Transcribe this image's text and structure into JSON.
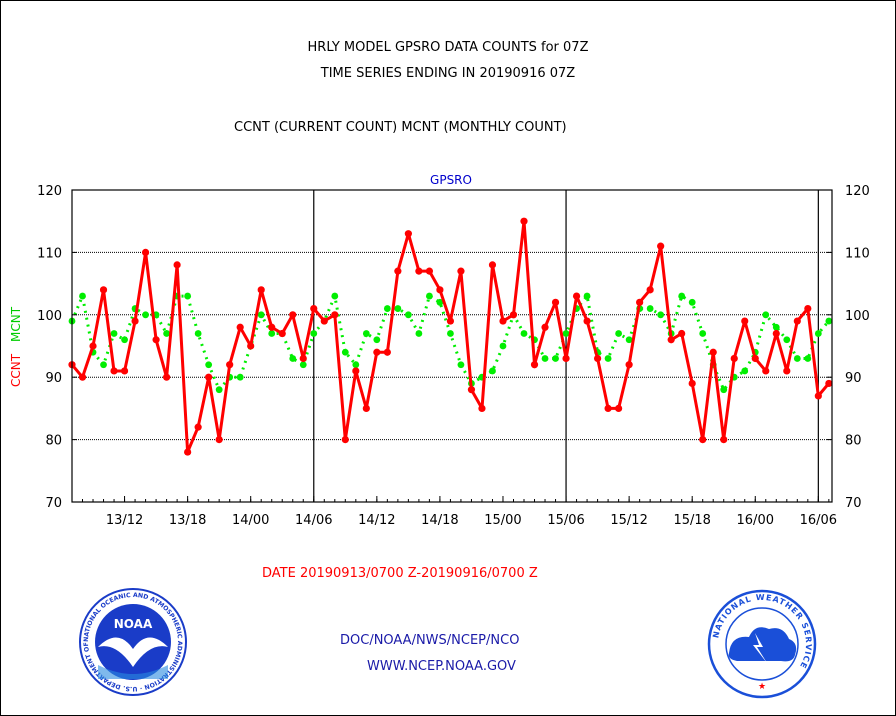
{
  "header": {
    "title_line1": "HRLY MODEL GPSRO DATA COUNTS for 07Z",
    "title_line2": "TIME SERIES ENDING IN 20190916 07Z",
    "subtitle": "CCNT (CURRENT COUNT) MCNT (MONTHLY COUNT)"
  },
  "footer": {
    "date_range": "DATE 20190913/0700 Z-20190916/0700 Z",
    "org_path": "DOC/NOAA/NWS/NCEP/NCO",
    "website": "WWW.NCEP.NOAA.GOV",
    "noaa_logo_text": "NOAA",
    "noaa_ring_text": "NATIONAL OCEANIC AND ATMOSPHERIC ADMINISTRATION · U.S. DEPARTMENT OF COMMERCE",
    "nws_ring_text": "NATIONAL WEATHER SERVICE"
  },
  "colors": {
    "ccnt": "#ff0000",
    "mcnt": "#00ee00",
    "label_blue": "#0000cc",
    "noaa_blue": "#1a3cc8",
    "nws_blue": "#1a4fd8"
  },
  "chart_data": {
    "type": "line",
    "title": "GPSRO",
    "ylabel_ccnt": "CCNT",
    "ylabel_mcnt": "MCNT",
    "ylim": [
      70,
      120
    ],
    "yticks": [
      70,
      80,
      90,
      100,
      110,
      120
    ],
    "grid": true,
    "x_tick_labels": [
      "13/12",
      "13/18",
      "14/00",
      "14/06",
      "14/12",
      "14/18",
      "15/00",
      "15/06",
      "15/12",
      "15/18",
      "16/00",
      "16/06"
    ],
    "x_tick_hours": [
      5,
      11,
      17,
      23,
      29,
      35,
      41,
      47,
      53,
      59,
      65,
      71
    ],
    "day_boundary_hours": [
      23,
      47,
      71
    ],
    "x_hours": [
      0,
      1,
      2,
      3,
      4,
      5,
      6,
      7,
      8,
      9,
      10,
      11,
      12,
      13,
      14,
      15,
      16,
      17,
      18,
      19,
      20,
      21,
      22,
      23,
      24,
      25,
      26,
      27,
      28,
      29,
      30,
      31,
      32,
      33,
      34,
      35,
      36,
      37,
      38,
      39,
      40,
      41,
      42,
      43,
      44,
      45,
      46,
      47,
      48,
      49,
      50,
      51,
      52,
      53,
      54,
      55,
      56,
      57,
      58,
      59,
      60,
      61,
      62,
      63,
      64,
      65,
      66,
      67,
      68,
      69,
      70,
      71,
      72
    ],
    "series": [
      {
        "name": "CCNT",
        "values": [
          92,
          90,
          95,
          104,
          91,
          91,
          99,
          110,
          96,
          90,
          108,
          78,
          82,
          90,
          80,
          92,
          98,
          95,
          104,
          98,
          97,
          100,
          93,
          101,
          99,
          100,
          80,
          91,
          85,
          94,
          94,
          107,
          113,
          107,
          107,
          104,
          99,
          107,
          88,
          85,
          108,
          99,
          100,
          115,
          92,
          98,
          102,
          93,
          103,
          99,
          93,
          85,
          85,
          92,
          102,
          104,
          111,
          96,
          97,
          89,
          80,
          94,
          80,
          93,
          99,
          93,
          91,
          97,
          91,
          99,
          101,
          87,
          89
        ]
      },
      {
        "name": "MCNT",
        "values": [
          99,
          103,
          94,
          92,
          97,
          96,
          101,
          100,
          100,
          97,
          103,
          103,
          97,
          92,
          88,
          90,
          90,
          95,
          100,
          97,
          97,
          93,
          92,
          97,
          99,
          103,
          94,
          92,
          97,
          96,
          101,
          101,
          100,
          97,
          103,
          102,
          97,
          92,
          89,
          90,
          91,
          95,
          100,
          97,
          96,
          93,
          93,
          97,
          101,
          103,
          94,
          93,
          97,
          96,
          101,
          101,
          100,
          97,
          103,
          102,
          97,
          92,
          88,
          90,
          91,
          94,
          100,
          98,
          96,
          93,
          93,
          97,
          99
        ]
      }
    ]
  }
}
